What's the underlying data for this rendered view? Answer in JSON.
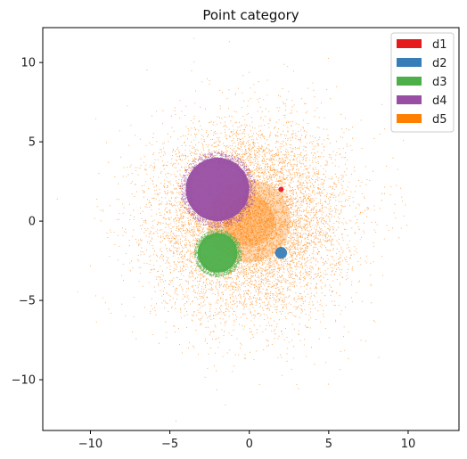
{
  "chart_data": {
    "type": "scatter",
    "title": "Point category",
    "xlabel": "",
    "ylabel": "",
    "xlim": [
      -13,
      13.2
    ],
    "ylim": [
      -13.2,
      12.2
    ],
    "xticks": [
      -10,
      -5,
      0,
      5,
      10
    ],
    "yticks": [
      -10,
      -5,
      0,
      5,
      10
    ],
    "grid": false,
    "legend_placement": "top-right",
    "series": [
      {
        "name": "d1",
        "color": "#e41a1c",
        "center": [
          2,
          2
        ],
        "spread": 0.08,
        "description": "tiny dense cluster"
      },
      {
        "name": "d2",
        "color": "#377eb8",
        "center": [
          2,
          -2
        ],
        "spread": 0.3,
        "description": "small dense cluster"
      },
      {
        "name": "d3",
        "color": "#4daf4a",
        "center": [
          -2,
          -2
        ],
        "spread": 1.0,
        "description": "medium cluster"
      },
      {
        "name": "d4",
        "color": "#984ea3",
        "center": [
          -2,
          2
        ],
        "spread": 1.6,
        "description": "large cluster"
      },
      {
        "name": "d5",
        "color": "#ff7f00",
        "center": [
          0,
          0
        ],
        "spread": 3.0,
        "description": "wide diffuse cloud"
      }
    ]
  }
}
